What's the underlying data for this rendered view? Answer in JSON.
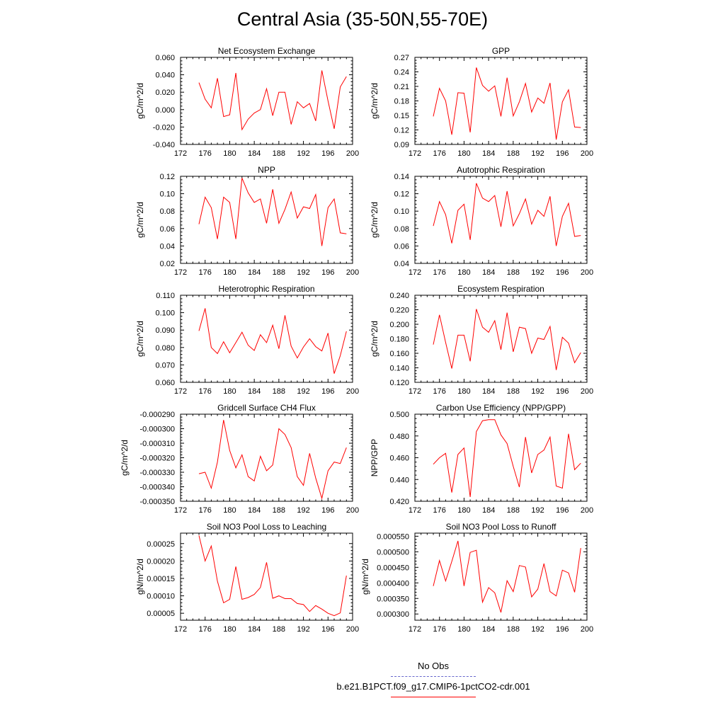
{
  "title": "Central Asia (35-50N,55-70E)",
  "legend": {
    "obs_label": "No Obs",
    "obs_color": "#6666cc",
    "case_label": "b.e21.B1PCT.f09_g17.CMIP6-1pctCO2-cdr.001",
    "case_color": "#ff0000"
  },
  "chart_data": [
    {
      "type": "line",
      "title": "Net Ecosystem Exchange",
      "ylabel": "gC/m^2/d",
      "xlim": [
        172,
        200
      ],
      "xticks": [
        172,
        176,
        180,
        184,
        188,
        192,
        196,
        200
      ],
      "ylim": [
        -0.04,
        0.06
      ],
      "yticks": [
        -0.04,
        -0.02,
        0.0,
        0.02,
        0.04,
        0.06
      ],
      "ytick_labels": [
        "-0.040",
        "-0.020",
        "0.000",
        "0.020",
        "0.040",
        "0.060"
      ],
      "x": [
        175,
        176,
        177,
        178,
        179,
        180,
        181,
        182,
        183,
        184,
        185,
        186,
        187,
        188,
        189,
        190,
        191,
        192,
        193,
        194,
        195,
        196,
        197,
        198,
        199
      ],
      "y": [
        0.031,
        0.012,
        0.002,
        0.036,
        -0.008,
        -0.006,
        0.042,
        -0.023,
        -0.011,
        -0.004,
        0.0,
        0.024,
        -0.007,
        0.02,
        0.02,
        -0.017,
        0.009,
        0.002,
        0.007,
        -0.013,
        0.045,
        0.01,
        -0.022,
        0.026,
        0.038
      ]
    },
    {
      "type": "line",
      "title": "GPP",
      "ylabel": "gC/m^2/d",
      "xlim": [
        172,
        200
      ],
      "xticks": [
        172,
        176,
        180,
        184,
        188,
        192,
        196,
        200
      ],
      "ylim": [
        0.09,
        0.27
      ],
      "yticks": [
        0.09,
        0.12,
        0.15,
        0.18,
        0.21,
        0.24,
        0.27
      ],
      "ytick_labels": [
        "0.09",
        "0.12",
        "0.15",
        "0.18",
        "0.21",
        "0.24",
        "0.27"
      ],
      "x": [
        175,
        176,
        177,
        178,
        179,
        180,
        181,
        182,
        183,
        184,
        185,
        186,
        187,
        188,
        189,
        190,
        191,
        192,
        193,
        194,
        195,
        196,
        197,
        198,
        199
      ],
      "y": [
        0.148,
        0.206,
        0.18,
        0.11,
        0.197,
        0.196,
        0.115,
        0.249,
        0.212,
        0.2,
        0.211,
        0.148,
        0.228,
        0.149,
        0.178,
        0.216,
        0.157,
        0.186,
        0.175,
        0.217,
        0.1,
        0.178,
        0.203,
        0.126,
        0.125
      ]
    },
    {
      "type": "line",
      "title": "NPP",
      "ylabel": "gC/m^2/d",
      "xlim": [
        172,
        200
      ],
      "xticks": [
        172,
        176,
        180,
        184,
        188,
        192,
        196,
        200
      ],
      "ylim": [
        0.02,
        0.12
      ],
      "yticks": [
        0.02,
        0.04,
        0.06,
        0.08,
        0.1,
        0.12
      ],
      "ytick_labels": [
        "0.02",
        "0.04",
        "0.06",
        "0.08",
        "0.10",
        "0.12"
      ],
      "x": [
        175,
        176,
        177,
        178,
        179,
        180,
        181,
        182,
        183,
        184,
        185,
        186,
        187,
        188,
        189,
        190,
        191,
        192,
        193,
        194,
        195,
        196,
        197,
        198,
        199
      ],
      "y": [
        0.065,
        0.096,
        0.084,
        0.048,
        0.096,
        0.09,
        0.048,
        0.118,
        0.101,
        0.09,
        0.094,
        0.066,
        0.105,
        0.066,
        0.082,
        0.102,
        0.072,
        0.085,
        0.083,
        0.099,
        0.04,
        0.084,
        0.094,
        0.055,
        0.054
      ]
    },
    {
      "type": "line",
      "title": "Autotrophic Respiration",
      "ylabel": "gC/m^2/d",
      "xlim": [
        172,
        200
      ],
      "xticks": [
        172,
        176,
        180,
        184,
        188,
        192,
        196,
        200
      ],
      "ylim": [
        0.04,
        0.14
      ],
      "yticks": [
        0.04,
        0.06,
        0.08,
        0.1,
        0.12,
        0.14
      ],
      "ytick_labels": [
        "0.04",
        "0.06",
        "0.08",
        "0.10",
        "0.12",
        "0.14"
      ],
      "x": [
        175,
        176,
        177,
        178,
        179,
        180,
        181,
        182,
        183,
        184,
        185,
        186,
        187,
        188,
        189,
        190,
        191,
        192,
        193,
        194,
        195,
        196,
        197,
        198,
        199
      ],
      "y": [
        0.083,
        0.111,
        0.096,
        0.063,
        0.101,
        0.108,
        0.067,
        0.132,
        0.115,
        0.111,
        0.118,
        0.082,
        0.123,
        0.083,
        0.097,
        0.114,
        0.085,
        0.101,
        0.094,
        0.117,
        0.06,
        0.094,
        0.109,
        0.071,
        0.072
      ]
    },
    {
      "type": "line",
      "title": "Heterotrophic Respiration",
      "ylabel": "gC/m^2/d",
      "xlim": [
        172,
        200
      ],
      "xticks": [
        172,
        176,
        180,
        184,
        188,
        192,
        196,
        200
      ],
      "ylim": [
        0.06,
        0.11
      ],
      "yticks": [
        0.06,
        0.07,
        0.08,
        0.09,
        0.1,
        0.11
      ],
      "ytick_labels": [
        "0.060",
        "0.070",
        "0.080",
        "0.090",
        "0.100",
        "0.110"
      ],
      "x": [
        175,
        176,
        177,
        178,
        179,
        180,
        181,
        182,
        183,
        184,
        185,
        186,
        187,
        188,
        189,
        190,
        191,
        192,
        193,
        194,
        195,
        196,
        197,
        198,
        199
      ],
      "y": [
        0.0895,
        0.1025,
        0.08,
        0.0765,
        0.0833,
        0.077,
        0.0828,
        0.0888,
        0.0813,
        0.0783,
        0.0873,
        0.0828,
        0.0928,
        0.0793,
        0.0985,
        0.0808,
        0.074,
        0.0803,
        0.085,
        0.0805,
        0.078,
        0.0883,
        0.065,
        0.0753,
        0.0893
      ]
    },
    {
      "type": "line",
      "title": "Ecosystem Respiration",
      "ylabel": "gC/m^2/d",
      "xlim": [
        172,
        200
      ],
      "xticks": [
        172,
        176,
        180,
        184,
        188,
        192,
        196,
        200
      ],
      "ylim": [
        0.12,
        0.24
      ],
      "yticks": [
        0.12,
        0.14,
        0.16,
        0.18,
        0.2,
        0.22,
        0.24
      ],
      "ytick_labels": [
        "0.120",
        "0.140",
        "0.160",
        "0.180",
        "0.200",
        "0.220",
        "0.240"
      ],
      "x": [
        175,
        176,
        177,
        178,
        179,
        180,
        181,
        182,
        183,
        184,
        185,
        186,
        187,
        188,
        189,
        190,
        191,
        192,
        193,
        194,
        195,
        196,
        197,
        198,
        199
      ],
      "y": [
        0.172,
        0.213,
        0.175,
        0.139,
        0.185,
        0.185,
        0.149,
        0.221,
        0.196,
        0.189,
        0.205,
        0.165,
        0.216,
        0.162,
        0.196,
        0.194,
        0.16,
        0.181,
        0.179,
        0.197,
        0.137,
        0.182,
        0.174,
        0.147,
        0.161
      ]
    },
    {
      "type": "line",
      "title": "Gridcell Surface CH4 Flux",
      "ylabel": "gC/m^2/d",
      "xlim": [
        172,
        200
      ],
      "xticks": [
        172,
        176,
        180,
        184,
        188,
        192,
        196,
        200
      ],
      "ylim": [
        -0.00035,
        -0.00029
      ],
      "yticks": [
        -0.00035,
        -0.00034,
        -0.00033,
        -0.00032,
        -0.00031,
        -0.0003,
        -0.00029
      ],
      "ytick_labels": [
        "-0.000350",
        "-0.000340",
        "-0.000330",
        "-0.000320",
        "-0.000310",
        "-0.000300",
        "-0.000290"
      ],
      "x": [
        175,
        176,
        177,
        178,
        179,
        180,
        181,
        182,
        183,
        184,
        185,
        186,
        187,
        188,
        189,
        190,
        191,
        192,
        193,
        194,
        195,
        196,
        197,
        198,
        199
      ],
      "y": [
        -0.000331,
        -0.00033,
        -0.000341,
        -0.000323,
        -0.000294,
        -0.000315,
        -0.000327,
        -0.000318,
        -0.000333,
        -0.000336,
        -0.000319,
        -0.000329,
        -0.000325,
        -0.0003,
        -0.000304,
        -0.000313,
        -0.000333,
        -0.000339,
        -0.000317,
        -0.000334,
        -0.000348,
        -0.000329,
        -0.000323,
        -0.000324,
        -0.000313
      ]
    },
    {
      "type": "line",
      "title": "Carbon Use Efficiency (NPP/GPP)",
      "ylabel": "NPP/GPP",
      "xlim": [
        172,
        200
      ],
      "xticks": [
        172,
        176,
        180,
        184,
        188,
        192,
        196,
        200
      ],
      "ylim": [
        0.42,
        0.5
      ],
      "yticks": [
        0.42,
        0.44,
        0.46,
        0.48,
        0.5
      ],
      "ytick_labels": [
        "0.420",
        "0.440",
        "0.460",
        "0.480",
        "0.500"
      ],
      "x": [
        175,
        176,
        177,
        178,
        179,
        180,
        181,
        182,
        183,
        184,
        185,
        186,
        187,
        188,
        189,
        190,
        191,
        192,
        193,
        194,
        195,
        196,
        197,
        198,
        199
      ],
      "y": [
        0.454,
        0.46,
        0.464,
        0.428,
        0.463,
        0.469,
        0.424,
        0.484,
        0.494,
        0.495,
        0.495,
        0.481,
        0.473,
        0.452,
        0.433,
        0.479,
        0.446,
        0.463,
        0.467,
        0.479,
        0.434,
        0.432,
        0.482,
        0.449,
        0.455
      ]
    },
    {
      "type": "line",
      "title": "Soil NO3 Pool Loss to Leaching",
      "ylabel": "gN/m^2/d",
      "xlim": [
        172,
        200
      ],
      "xticks": [
        172,
        176,
        180,
        184,
        188,
        192,
        196,
        200
      ],
      "ylim": [
        3e-05,
        0.00028
      ],
      "yticks": [
        5e-05,
        0.0001,
        0.00015,
        0.0002,
        0.00025
      ],
      "ytick_labels": [
        "0.00005",
        "0.00010",
        "0.00015",
        "0.00020",
        "0.00025"
      ],
      "x": [
        175,
        176,
        177,
        178,
        179,
        180,
        181,
        182,
        183,
        184,
        185,
        186,
        187,
        188,
        189,
        190,
        191,
        192,
        193,
        194,
        195,
        196,
        197,
        198,
        199
      ],
      "y": [
        0.000273,
        0.0002,
        0.000243,
        0.000142,
        8e-05,
        9e-05,
        0.000184,
        9e-05,
        9.5e-05,
        0.000104,
        0.000124,
        0.000196,
        9.3e-05,
        0.0001,
        9.2e-05,
        9.2e-05,
        7.8e-05,
        7.5e-05,
        5.5e-05,
        7.2e-05,
        6.2e-05,
        5e-05,
        4.3e-05,
        5.1e-05,
        0.000158
      ]
    },
    {
      "type": "line",
      "title": "Soil NO3 Pool Loss to Runoff",
      "ylabel": "gN/m^2/d",
      "xlim": [
        172,
        200
      ],
      "xticks": [
        172,
        176,
        180,
        184,
        188,
        192,
        196,
        200
      ],
      "ylim": [
        0.00028,
        0.00056
      ],
      "yticks": [
        0.0003,
        0.00035,
        0.0004,
        0.00045,
        0.0005,
        0.00055
      ],
      "ytick_labels": [
        "0.000300",
        "0.000350",
        "0.000400",
        "0.000450",
        "0.000500",
        "0.000550"
      ],
      "x": [
        175,
        176,
        177,
        178,
        179,
        180,
        181,
        182,
        183,
        184,
        185,
        186,
        187,
        188,
        189,
        190,
        191,
        192,
        193,
        194,
        195,
        196,
        197,
        198,
        199
      ],
      "y": [
        0.00039,
        0.000472,
        0.000406,
        0.000469,
        0.000535,
        0.00039,
        0.000498,
        0.000505,
        0.000338,
        0.000385,
        0.000368,
        0.000305,
        0.000407,
        0.000372,
        0.000456,
        0.000451,
        0.000355,
        0.00038,
        0.000462,
        0.000372,
        0.000358,
        0.000441,
        0.000432,
        0.00037,
        0.000512
      ]
    }
  ]
}
